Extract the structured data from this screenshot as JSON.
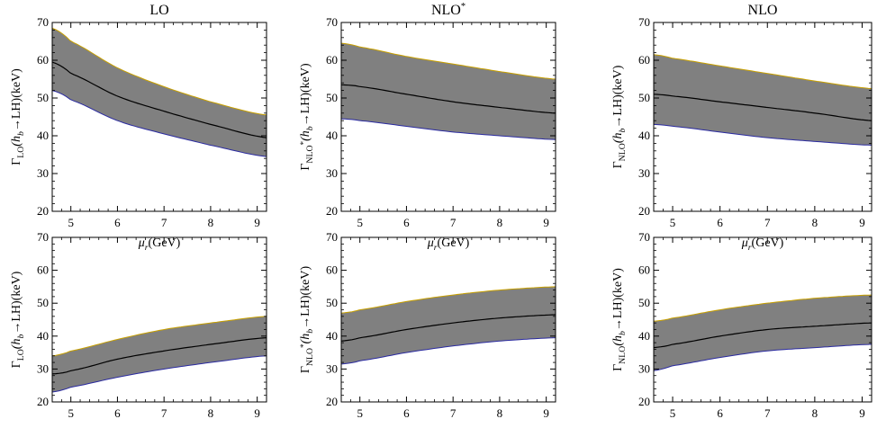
{
  "chart_data": [
    {
      "type": "area",
      "title": "LO",
      "xlabel": "μr(GeV)",
      "ylabel": "ΓLO(hb→LH)(keV)",
      "xlim": [
        4.6,
        9.2
      ],
      "ylim": [
        20,
        70
      ],
      "x_ticks": [
        "5",
        "6",
        "7",
        "8",
        "9"
      ],
      "y_ticks": [
        "20",
        "30",
        "40",
        "50",
        "60",
        "70"
      ],
      "x": [
        4.6,
        5.0,
        6.0,
        7.0,
        8.0,
        9.2
      ],
      "series": [
        {
          "values": [
            68.5,
            65.0,
            58.0,
            53.0,
            49.0,
            45.5
          ]
        },
        {
          "values": [
            59.5,
            56.5,
            50.5,
            46.5,
            43.0,
            39.5
          ]
        },
        {
          "values": [
            52.0,
            49.5,
            44.0,
            40.5,
            37.5,
            34.5
          ]
        }
      ]
    },
    {
      "type": "area",
      "title": "NLO*",
      "xlabel": "μr(GeV)",
      "ylabel": "ΓNLO*(hb→LH)(keV)",
      "xlim": [
        4.6,
        9.2
      ],
      "ylim": [
        20,
        70
      ],
      "x_ticks": [
        "5",
        "6",
        "7",
        "8",
        "9"
      ],
      "y_ticks": [
        "20",
        "30",
        "40",
        "50",
        "60",
        "70"
      ],
      "x": [
        4.6,
        5.0,
        6.0,
        7.0,
        8.0,
        9.2
      ],
      "series": [
        {
          "values": [
            64.5,
            63.5,
            61.0,
            59.0,
            57.0,
            55.0
          ]
        },
        {
          "values": [
            53.5,
            53.0,
            51.0,
            49.0,
            47.5,
            46.0
          ]
        },
        {
          "values": [
            44.5,
            44.0,
            42.5,
            41.0,
            40.0,
            39.0
          ]
        }
      ]
    },
    {
      "type": "area",
      "title": "NLO",
      "xlabel": "μr(GeV)",
      "ylabel": "ΓNLO(hb→LH)(keV)",
      "xlim": [
        4.6,
        9.2
      ],
      "ylim": [
        20,
        70
      ],
      "x_ticks": [
        "5",
        "6",
        "7",
        "8",
        "9"
      ],
      "y_ticks": [
        "20",
        "30",
        "40",
        "50",
        "60",
        "70"
      ],
      "x": [
        4.6,
        5.0,
        6.0,
        7.0,
        8.0,
        9.2
      ],
      "series": [
        {
          "values": [
            61.5,
            60.5,
            58.5,
            56.5,
            54.5,
            52.5
          ]
        },
        {
          "values": [
            51.0,
            50.5,
            49.0,
            47.5,
            46.0,
            44.0
          ]
        },
        {
          "values": [
            43.0,
            42.5,
            41.0,
            39.5,
            38.5,
            37.5
          ]
        }
      ]
    },
    {
      "type": "area",
      "title": "",
      "xlabel": "μΛ(GeV)",
      "ylabel": "ΓLO(hb→LH)(keV)",
      "xlim": [
        4.6,
        9.2
      ],
      "ylim": [
        20,
        70
      ],
      "x_ticks": [
        "5",
        "6",
        "7",
        "8",
        "9"
      ],
      "y_ticks": [
        "20",
        "30",
        "40",
        "50",
        "60",
        "70"
      ],
      "x": [
        4.6,
        5.0,
        6.0,
        7.0,
        8.0,
        9.2
      ],
      "series": [
        {
          "values": [
            34.0,
            35.5,
            39.0,
            42.0,
            44.0,
            46.0
          ]
        },
        {
          "values": [
            28.5,
            29.5,
            33.0,
            35.5,
            37.5,
            39.5
          ]
        },
        {
          "values": [
            23.0,
            24.5,
            27.5,
            30.0,
            32.0,
            34.0
          ]
        }
      ]
    },
    {
      "type": "area",
      "title": "",
      "xlabel": "μΛ(GeV)",
      "ylabel": "ΓNLO*(hb→LH)(keV)",
      "xlim": [
        4.6,
        9.2
      ],
      "ylim": [
        20,
        70
      ],
      "x_ticks": [
        "5",
        "6",
        "7",
        "8",
        "9"
      ],
      "y_ticks": [
        "20",
        "30",
        "40",
        "50",
        "60",
        "70"
      ],
      "x": [
        4.6,
        5.0,
        6.0,
        7.0,
        8.0,
        9.2
      ],
      "series": [
        {
          "values": [
            47.0,
            48.0,
            50.5,
            52.5,
            54.0,
            55.0
          ]
        },
        {
          "values": [
            38.5,
            39.5,
            42.0,
            44.0,
            45.5,
            46.5
          ]
        },
        {
          "values": [
            31.5,
            32.5,
            35.0,
            37.0,
            38.5,
            39.5
          ]
        }
      ]
    },
    {
      "type": "area",
      "title": "",
      "xlabel": "μΛ(GeV)",
      "ylabel": "ΓNLO(hb→LH)(keV)",
      "xlim": [
        4.6,
        9.2
      ],
      "ylim": [
        20,
        70
      ],
      "x_ticks": [
        "5",
        "6",
        "7",
        "8",
        "9"
      ],
      "y_ticks": [
        "20",
        "30",
        "40",
        "50",
        "60",
        "70"
      ],
      "x": [
        4.6,
        5.0,
        6.0,
        7.0,
        8.0,
        9.2
      ],
      "series": [
        {
          "values": [
            44.5,
            45.5,
            48.0,
            50.0,
            51.5,
            52.5
          ]
        },
        {
          "values": [
            36.5,
            37.5,
            40.0,
            42.0,
            43.0,
            44.0
          ]
        },
        {
          "values": [
            29.5,
            31.0,
            33.5,
            35.5,
            36.5,
            37.5
          ]
        }
      ]
    }
  ],
  "colors": {
    "band_fill": "#808080",
    "central_line": "#000000",
    "upper_edge": "#c8a000",
    "lower_edge": "#2a2aa0"
  }
}
